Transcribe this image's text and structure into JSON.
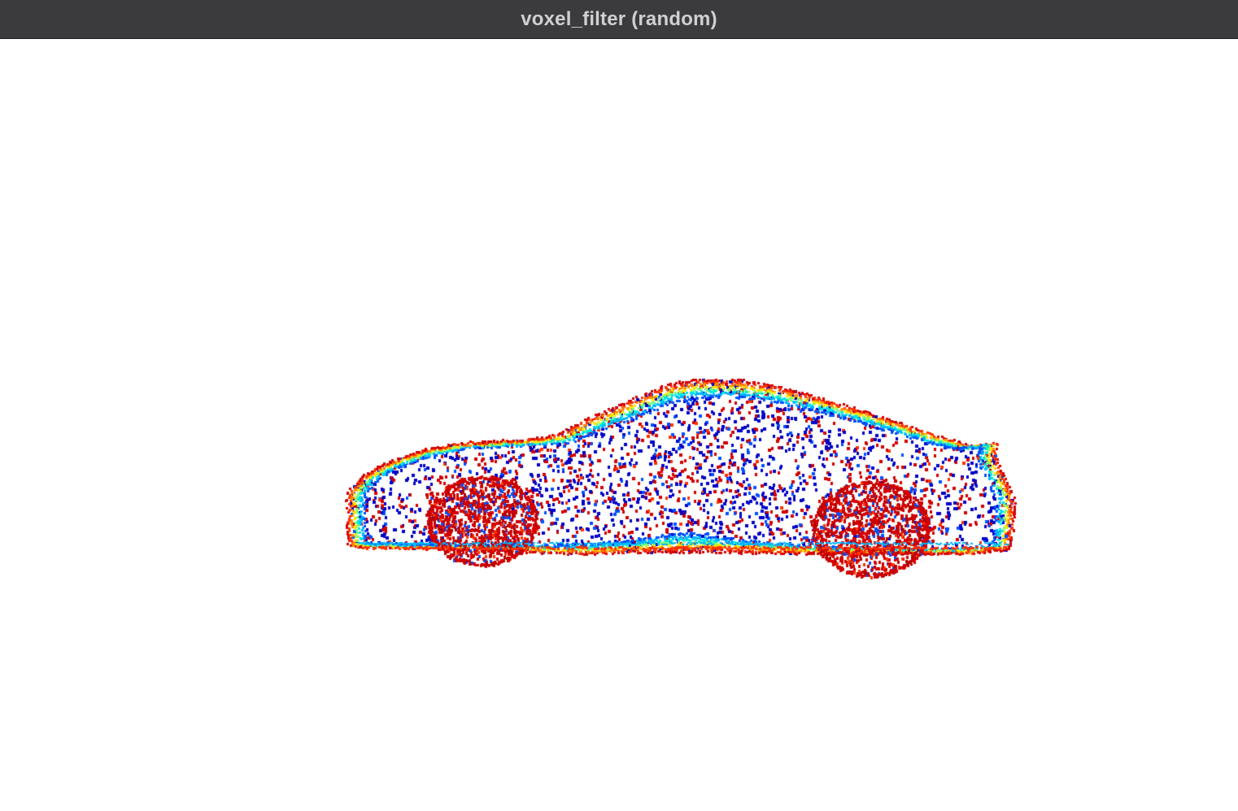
{
  "window": {
    "title": "voxel_filter (random)"
  },
  "viewer": {
    "background_color": "#ffffff",
    "object": "car-point-cloud",
    "colormap": "jet",
    "colormap_colors": [
      "#0000c8",
      "#0050ff",
      "#00b4ff",
      "#00e6e6",
      "#78ff78",
      "#ffe600",
      "#ff8c00",
      "#ff3200",
      "#d20000",
      "#b40000"
    ]
  }
}
